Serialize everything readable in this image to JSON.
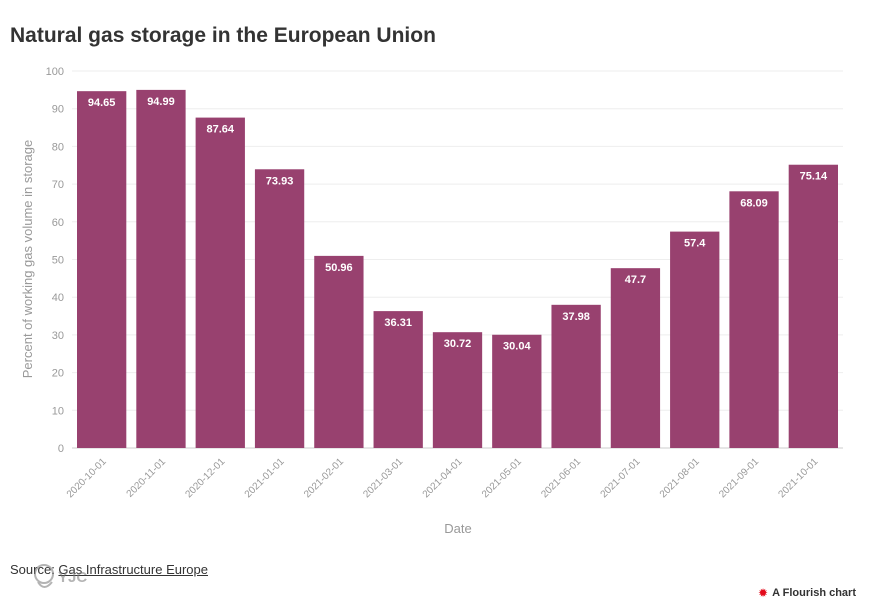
{
  "chart_data": {
    "type": "bar",
    "title": "Natural gas storage in the European Union",
    "xlabel": "Date",
    "ylabel": "Percent of working gas volume in storage",
    "ylim": [
      0,
      100
    ],
    "yticks": [
      0,
      10,
      20,
      30,
      40,
      50,
      60,
      70,
      80,
      90,
      100
    ],
    "grid": true,
    "bar_color": "#98416f",
    "categories": [
      "2020-10-01",
      "2020-11-01",
      "2020-12-01",
      "2021-01-01",
      "2021-02-01",
      "2021-03-01",
      "2021-04-01",
      "2021-05-01",
      "2021-06-01",
      "2021-07-01",
      "2021-08-01",
      "2021-09-01",
      "2021-10-01"
    ],
    "values": [
      94.65,
      94.99,
      87.64,
      73.93,
      50.96,
      36.31,
      30.72,
      30.04,
      37.98,
      47.7,
      57.4,
      68.09,
      75.14
    ],
    "data_labels": [
      "94.65",
      "94.99",
      "87.64",
      "73.93",
      "50.96",
      "36.31",
      "30.72",
      "30.04",
      "37.98",
      "47.7",
      "57.4",
      "68.09",
      "75.14"
    ]
  },
  "source": {
    "prefix": "Source: ",
    "link_text": "Gas Infrastructure Europe"
  },
  "credit": {
    "label": "A Flourish chart",
    "icon": "flourish-logo-icon"
  },
  "watermark": {
    "text": "YJC",
    "icon": "news-agency-logo-icon"
  },
  "colors": {
    "bar": "#98416f",
    "axis_text": "#999999",
    "title": "#333333",
    "flourish": "#e30b1b"
  }
}
